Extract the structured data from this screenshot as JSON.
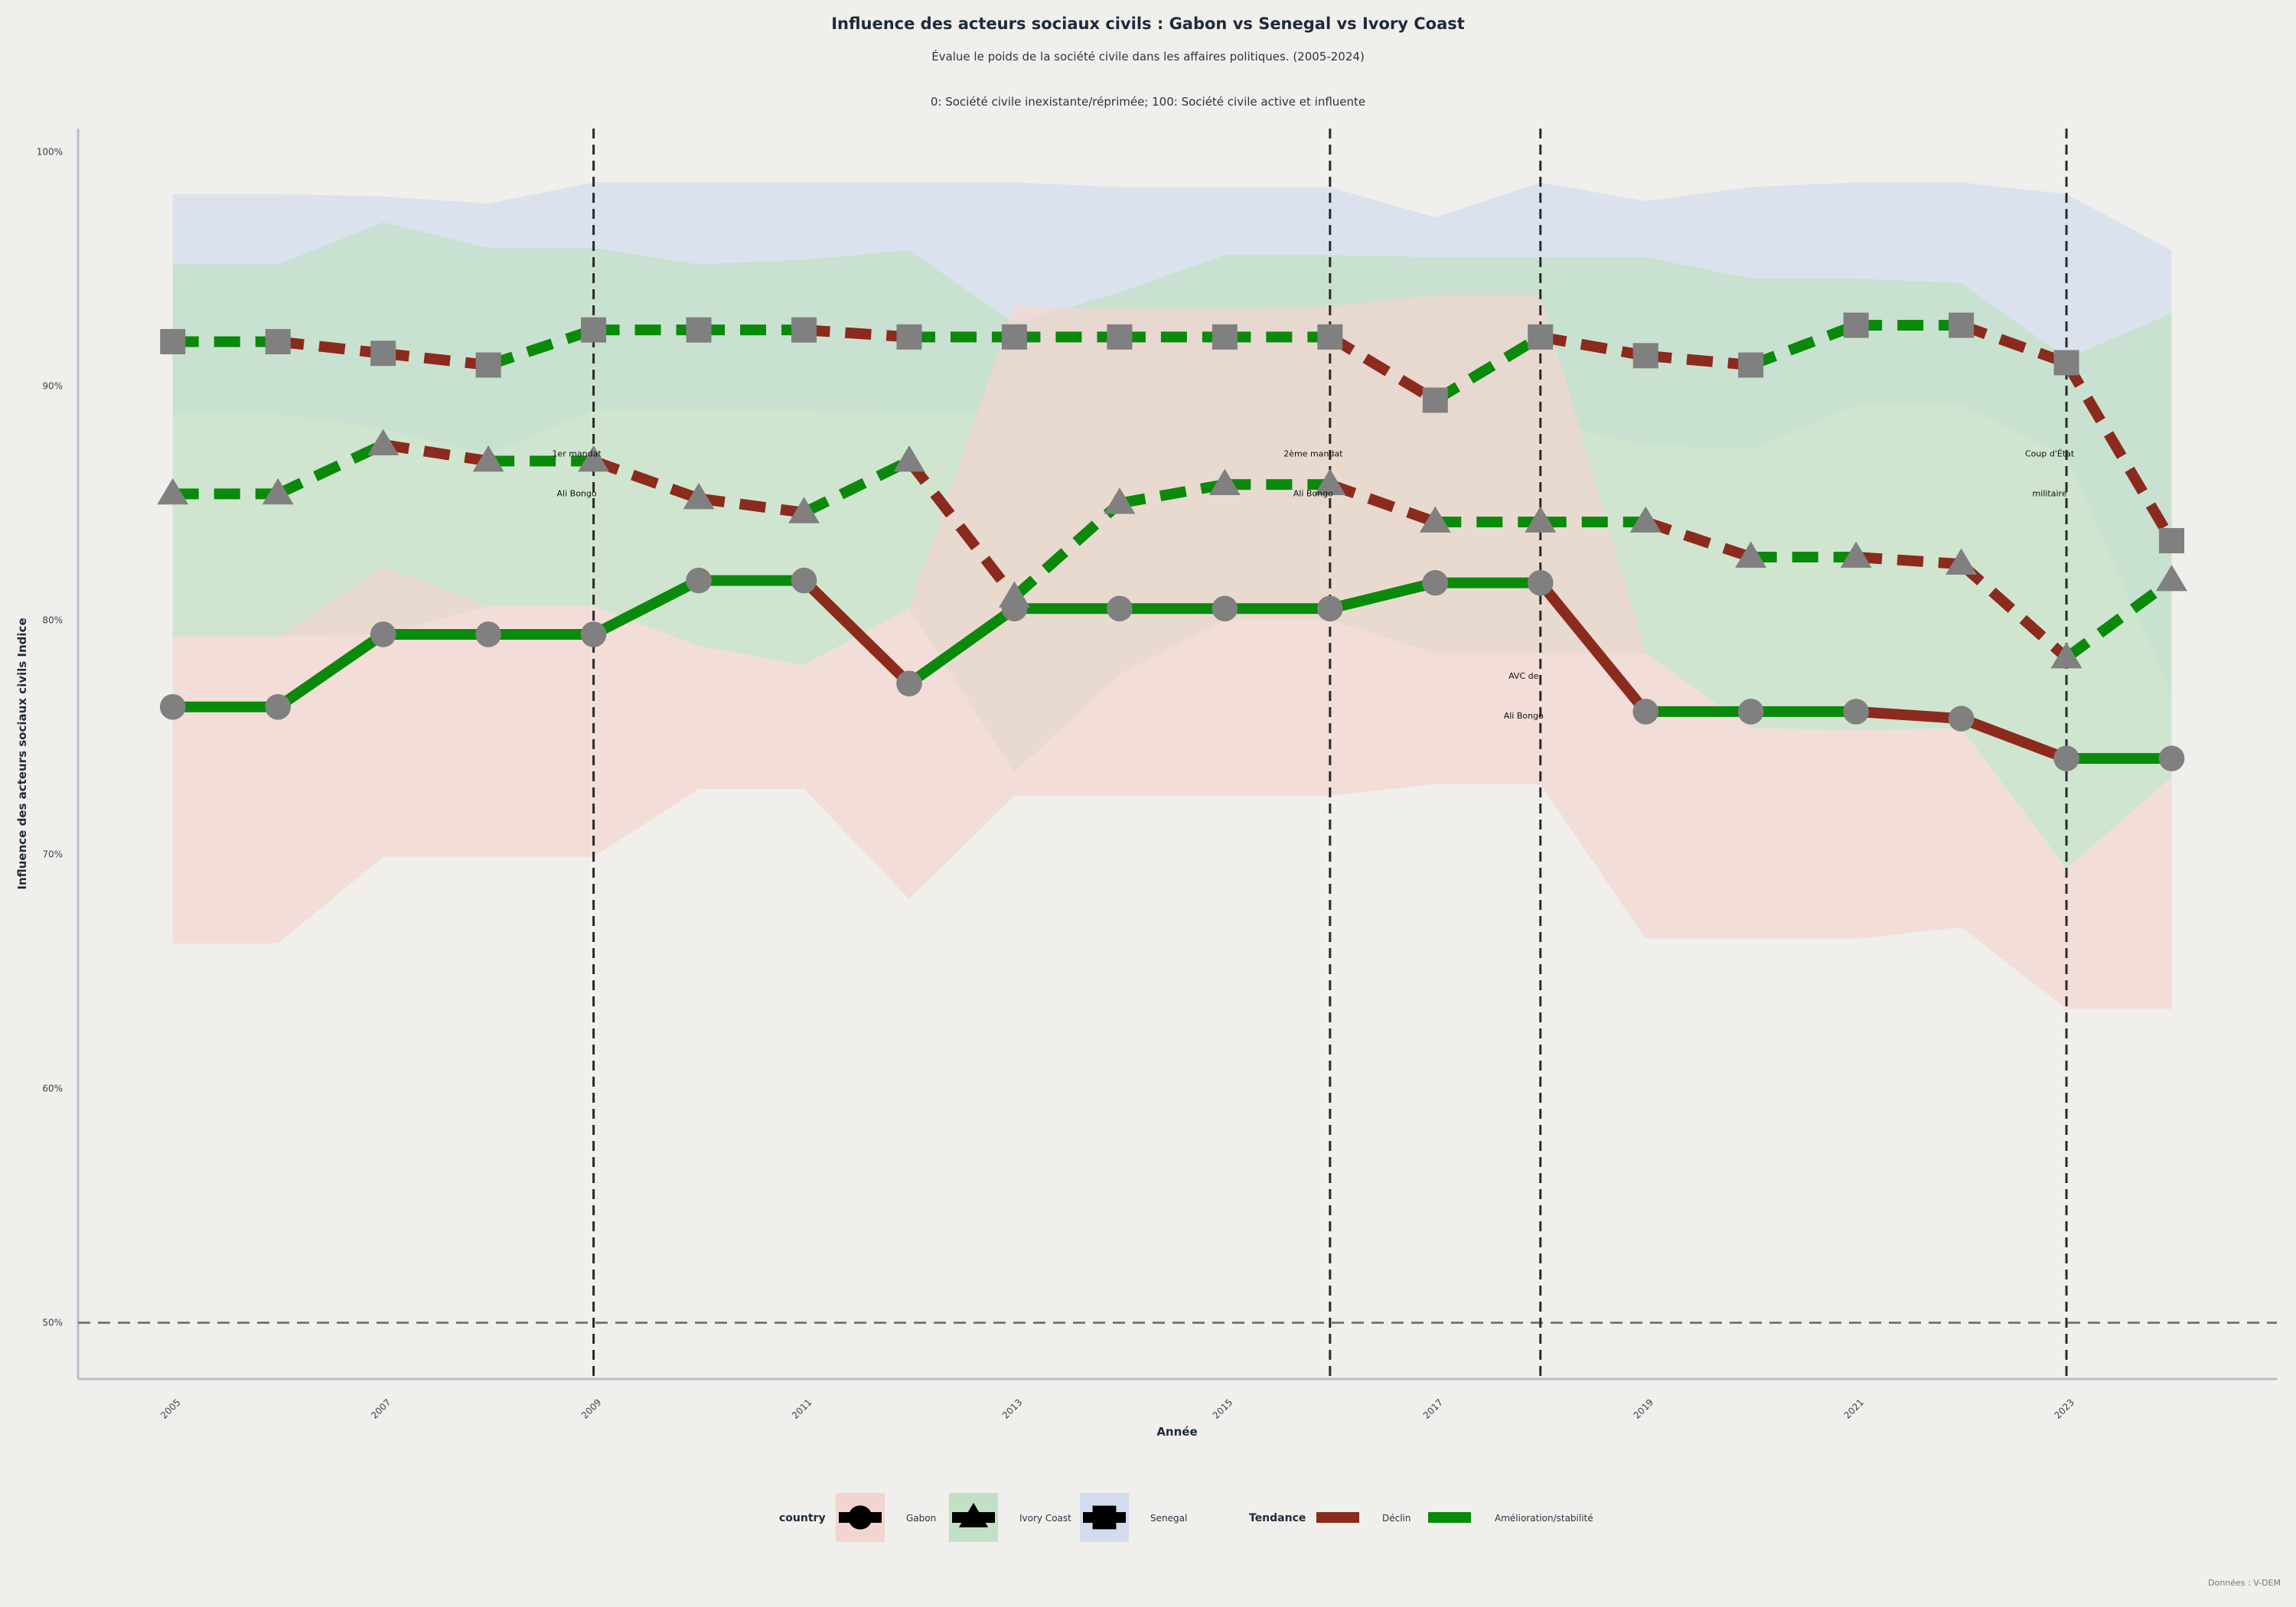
{
  "chart_data": {
    "type": "line",
    "title": "Influence des acteurs sociaux civils : Gabon vs Senegal vs Ivory Coast",
    "subtitle": "Évalue le poids de la société civile dans les affaires politiques. (2005-2024)",
    "subtitle2": "0: Société civile inexistante/réprimée; 100: Société civile active et influente",
    "xlabel": "Année",
    "ylabel": "Influence des acteurs sociaux civils Indice",
    "x": [
      2005,
      2006,
      2007,
      2008,
      2009,
      2010,
      2011,
      2012,
      2013,
      2014,
      2015,
      2016,
      2017,
      2018,
      2019,
      2020,
      2021,
      2022,
      2023,
      2024
    ],
    "x_ticks": [
      2005,
      2007,
      2009,
      2011,
      2013,
      2015,
      2017,
      2019,
      2021,
      2023
    ],
    "xlim": [
      2004.1,
      2025
    ],
    "ylim": [
      47.6,
      101
    ],
    "y_ticks": [
      50,
      60,
      70,
      80,
      90,
      100
    ],
    "y_tick_labels": [
      "50%",
      "60%",
      "70%",
      "80%",
      "90%",
      "100%"
    ],
    "reference_line_y": 50,
    "event_lines_x": [
      2009,
      2016,
      2018,
      2023
    ],
    "series": [
      {
        "name": "Gabon",
        "marker": "circle",
        "dash": "solid",
        "color": "#f2d5d0",
        "values": [
          76.3,
          76.3,
          79.4,
          79.4,
          79.4,
          81.7,
          81.7,
          77.3,
          80.5,
          80.5,
          80.5,
          80.5,
          81.6,
          81.6,
          76.1,
          76.1,
          76.1,
          75.8,
          74.1,
          74.1
        ],
        "lower": [
          66.2,
          66.2,
          69.9,
          69.9,
          69.9,
          72.8,
          72.8,
          68.1,
          72.5,
          72.5,
          72.5,
          72.5,
          73.0,
          73.0,
          66.4,
          66.4,
          66.4,
          66.9,
          63.4,
          63.4
        ],
        "upper": [
          79.3,
          79.3,
          82.3,
          80.6,
          80.6,
          78.9,
          78.1,
          80.5,
          93.4,
          93.3,
          93.3,
          93.4,
          93.9,
          93.9,
          78.6,
          75.4,
          75.3,
          75.4,
          69.4,
          73.3
        ]
      },
      {
        "name": "Ivory Coast",
        "marker": "triangle",
        "dash": "dashed",
        "color": "#c2e0c5",
        "values": [
          85.4,
          85.4,
          87.5,
          86.8,
          86.8,
          85.2,
          84.6,
          86.8,
          81.0,
          85.0,
          85.8,
          85.8,
          84.2,
          84.2,
          84.2,
          82.7,
          82.7,
          82.4,
          78.4,
          81.7
        ],
        "lower": [
          79.3,
          79.3,
          79.4,
          80.6,
          80.6,
          78.9,
          78.1,
          80.5,
          73.5,
          77.7,
          80.0,
          80.0,
          78.6,
          78.6,
          78.6,
          75.4,
          75.3,
          75.4,
          69.4,
          73.3
        ],
        "upper": [
          95.2,
          95.2,
          97.0,
          95.9,
          95.9,
          95.2,
          95.4,
          95.8,
          92.7,
          94.0,
          95.6,
          95.6,
          95.5,
          95.5,
          95.5,
          94.6,
          94.6,
          94.4,
          91.2,
          93.1
        ]
      },
      {
        "name": "Senegal",
        "marker": "square",
        "dash": "dashed",
        "color": "#d3dcef",
        "values": [
          91.9,
          91.9,
          91.4,
          90.9,
          92.4,
          92.4,
          92.4,
          92.1,
          92.1,
          92.1,
          92.1,
          92.1,
          89.4,
          92.1,
          91.3,
          90.9,
          92.6,
          92.6,
          91.0,
          83.4
        ],
        "lower": [
          88.8,
          88.8,
          88.2,
          87.1,
          89.0,
          89.0,
          89.0,
          88.8,
          88.8,
          88.8,
          88.8,
          88.8,
          84.8,
          88.5,
          87.5,
          87.3,
          89.2,
          89.2,
          87.0,
          76.9
        ],
        "upper": [
          98.2,
          98.2,
          98.1,
          97.8,
          98.7,
          98.7,
          98.7,
          98.7,
          98.7,
          98.5,
          98.5,
          98.5,
          97.2,
          98.7,
          97.9,
          98.5,
          98.7,
          98.7,
          98.2,
          95.8
        ]
      }
    ],
    "trend_colors": {
      "decline": "#8b2a1d",
      "improvement": "#0a8a0a"
    },
    "annotations": [
      {
        "x": 2009,
        "y_top": 87.0,
        "line1": "1er mandat",
        "line2": "Ali Bongo"
      },
      {
        "x": 2016,
        "y_top": 87.0,
        "line1": "2ème mandat",
        "line2": "Ali Bongo"
      },
      {
        "x": 2018,
        "y_top": 77.5,
        "line1": "AVC de",
        "line2": "Ali Bongo"
      },
      {
        "x": 2023,
        "y_top": 87.0,
        "line1": "Coup d'État",
        "line2": "militaire"
      }
    ],
    "legend": {
      "placement": "bottom-center",
      "country_title": "country",
      "trend_title": "Tendance",
      "trend_items": [
        "Déclin",
        "Amélioration/stabilité"
      ]
    },
    "source": "Données : V-DEM"
  }
}
